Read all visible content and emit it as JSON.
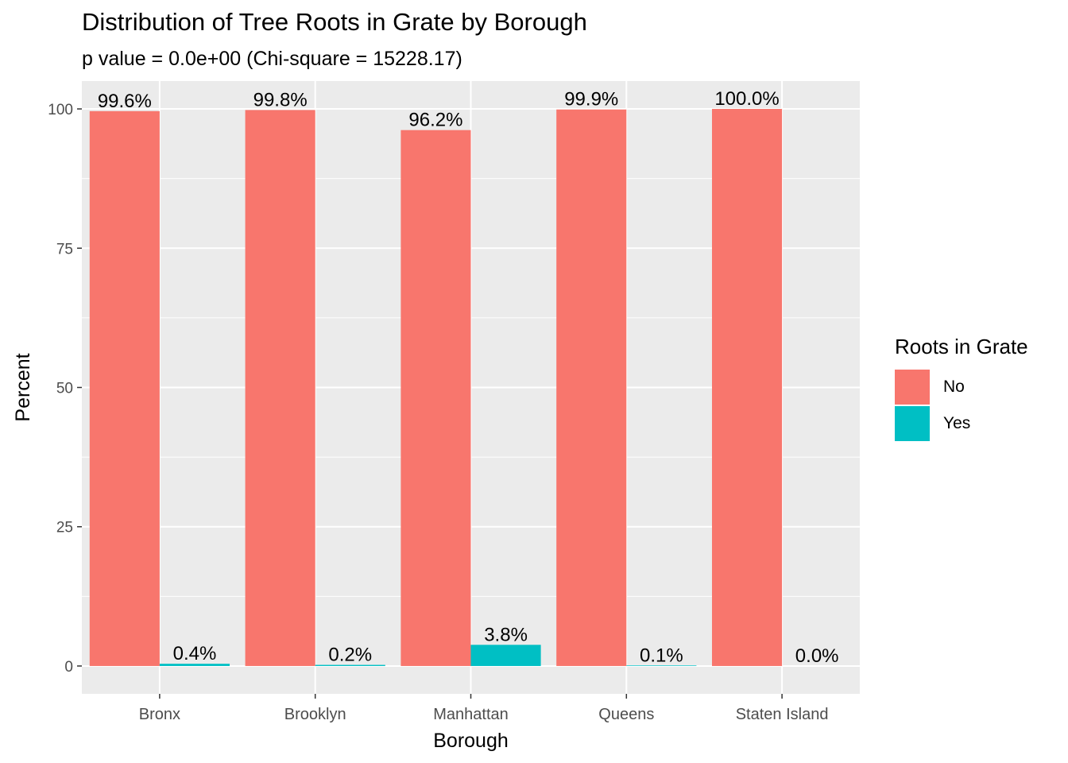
{
  "chart_data": {
    "type": "bar",
    "title": "Distribution of Tree Roots in Grate by Borough",
    "subtitle": "p value = 0.0e+00 (Chi-square = 15228.17)",
    "xlabel": "Borough",
    "ylabel": "Percent",
    "categories": [
      "Bronx",
      "Brooklyn",
      "Manhattan",
      "Queens",
      "Staten Island"
    ],
    "series": [
      {
        "name": "No",
        "color": "#F8766D",
        "values": [
          99.6,
          99.8,
          96.2,
          99.9,
          100.0
        ],
        "labels": [
          "99.6%",
          "99.8%",
          "96.2%",
          "99.9%",
          "100.0%"
        ]
      },
      {
        "name": "Yes",
        "color": "#00BFC4",
        "values": [
          0.4,
          0.2,
          3.8,
          0.1,
          0.0
        ],
        "labels": [
          "0.4%",
          "0.2%",
          "3.8%",
          "0.1%",
          "0.0%"
        ]
      }
    ],
    "ylim": [
      -5,
      105
    ],
    "yticks": [
      0,
      25,
      50,
      75,
      100
    ],
    "grid": true,
    "legend": {
      "title": "Roots in Grate",
      "position": "right"
    }
  }
}
